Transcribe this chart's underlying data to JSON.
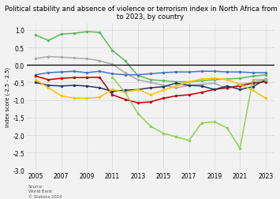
{
  "title": "Political stability and absence of violence or terrorism index in North Africa from 2005\nto 2023, by country",
  "years": [
    2005,
    2006,
    2007,
    2008,
    2009,
    2010,
    2011,
    2012,
    2013,
    2014,
    2015,
    2016,
    2017,
    2018,
    2019,
    2020,
    2021,
    2022,
    2023
  ],
  "morocco": [
    0.85,
    0.7,
    0.88,
    0.9,
    0.95,
    0.93,
    0.42,
    0.12,
    -0.3,
    -0.42,
    -0.45,
    -0.48,
    -0.48,
    -0.45,
    -0.42,
    -0.4,
    -0.38,
    -0.32,
    -0.28
  ],
  "tunisia": [
    0.18,
    0.24,
    0.22,
    0.2,
    0.18,
    0.12,
    0.02,
    -0.22,
    -0.42,
    -0.5,
    -0.58,
    -0.65,
    -0.58,
    -0.55,
    -0.52,
    -0.68,
    -0.55,
    -0.5,
    -0.4
  ],
  "egypt": [
    -0.28,
    -0.22,
    -0.2,
    -0.18,
    -0.22,
    -0.18,
    -0.25,
    -0.28,
    -0.28,
    -0.25,
    -0.22,
    -0.2,
    -0.2,
    -0.18,
    -0.18,
    -0.2,
    -0.2,
    -0.22,
    -0.22
  ],
  "algeria": [
    -0.32,
    -0.42,
    -0.38,
    -0.36,
    -0.36,
    -0.35,
    -0.85,
    -0.98,
    -1.08,
    -1.05,
    -0.95,
    -0.88,
    -0.85,
    -0.78,
    -0.7,
    -0.65,
    -0.6,
    -0.52,
    -0.48
  ],
  "libya": [
    -0.5,
    -0.58,
    -0.6,
    -0.58,
    -0.6,
    -0.65,
    -0.75,
    -0.72,
    -0.7,
    -0.65,
    -0.62,
    -0.52,
    -0.58,
    -0.6,
    -0.7,
    -0.6,
    -0.7,
    -0.62,
    -0.42
  ],
  "sudan": [
    -0.42,
    -0.65,
    -0.88,
    -0.95,
    -0.95,
    -0.92,
    -0.7,
    -0.78,
    -0.7,
    -0.85,
    -0.72,
    -0.6,
    -0.48,
    -0.4,
    -0.38,
    -0.42,
    -0.55,
    -0.72,
    -0.95
  ],
  "limegreen_years": [
    2011,
    2012,
    2013,
    2014,
    2015,
    2016,
    2017,
    2018,
    2019,
    2020,
    2021,
    2022,
    2023
  ],
  "limegreen": [
    -0.35,
    -0.78,
    -1.38,
    -1.75,
    -1.95,
    -2.05,
    -2.15,
    -1.65,
    -1.62,
    -1.8,
    -2.38,
    -0.42,
    -0.42
  ],
  "colors": {
    "morocco": "#5cb85c",
    "tunisia": "#aaaaaa",
    "egypt": "#4472c4",
    "algeria": "#c00000",
    "libya": "#1f3864",
    "sudan": "#ffc000",
    "limegreen": "#92d050"
  },
  "ylim": [
    -3.0,
    1.2
  ],
  "yticks": [
    1.0,
    0.5,
    0.0,
    -0.5,
    -1.0,
    -1.5,
    -2.0,
    -2.5,
    -3.0
  ],
  "xlim": [
    2004.3,
    2023.7
  ],
  "xticks": [
    2005,
    2007,
    2009,
    2011,
    2013,
    2015,
    2017,
    2019,
    2021,
    2023
  ],
  "ylabel": "Index score (-2.5 - 2.5)",
  "source": "Source:\nWorld Bank\n© Statista 2024",
  "background_color": "#f2f2f2"
}
